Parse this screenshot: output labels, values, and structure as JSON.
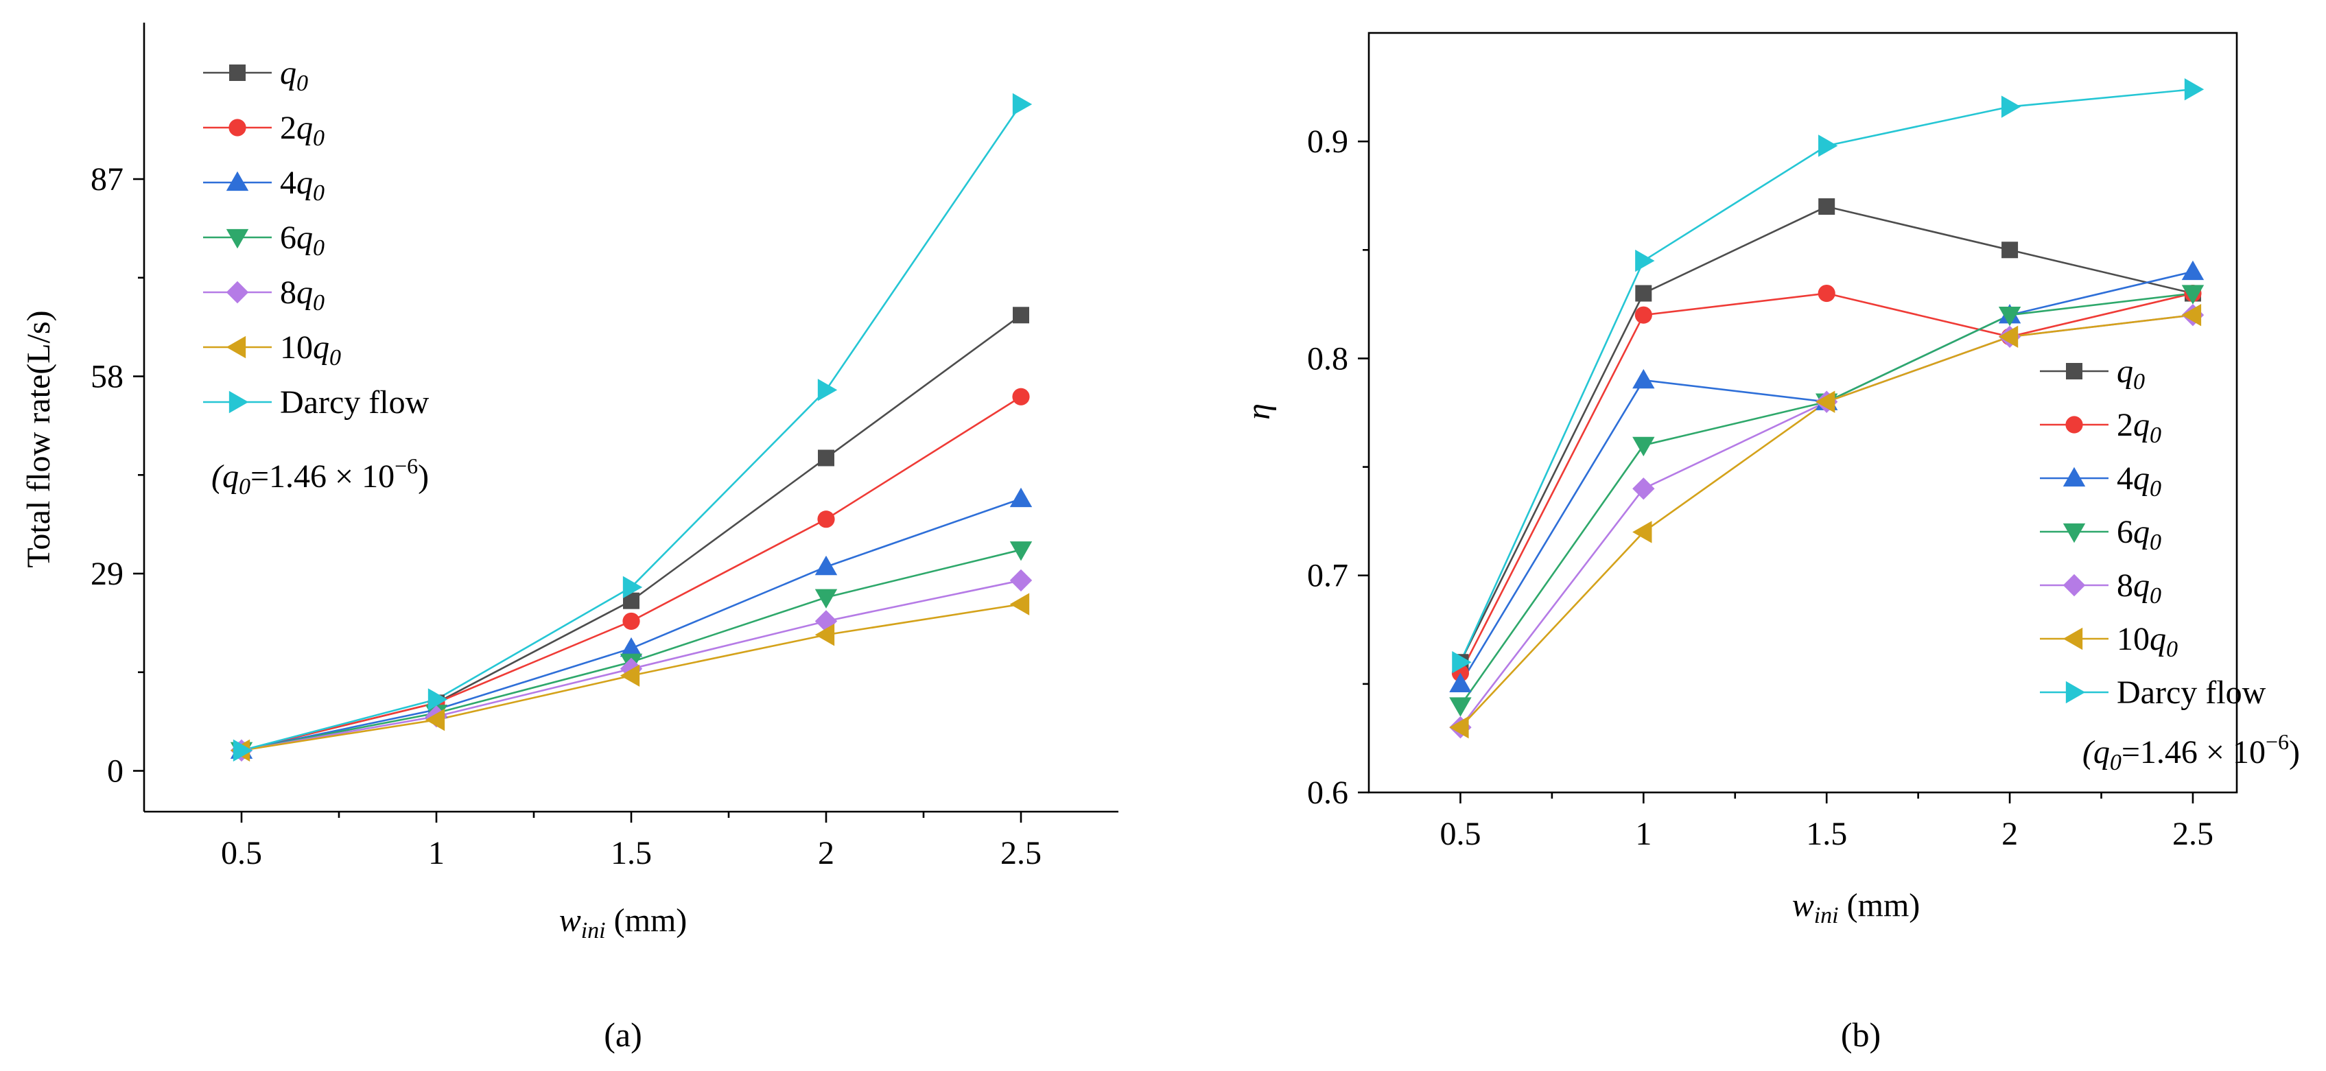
{
  "chart_data": [
    {
      "type": "line",
      "panel_label": "(a)",
      "x": [
        0.5,
        1,
        1.5,
        2,
        2.5
      ],
      "x_tick_labels": [
        "0.5",
        "1",
        "1.5",
        "2",
        "2.5"
      ],
      "xlim": [
        0.25,
        2.75
      ],
      "xlabel": {
        "var": "w",
        "sub": "ini",
        "unit": "(mm)"
      },
      "ylabel": "Total flow rate(L/s)",
      "ylim": [
        -6,
        110
      ],
      "y_ticks": [
        0,
        29,
        58,
        87
      ],
      "y_tick_labels": [
        "0",
        "29",
        "58",
        "87"
      ],
      "legend_position": "top-left",
      "note": {
        "open": "(",
        "var": "q",
        "sub": "0",
        "text": "=1.46 × 10",
        "exp": "−6",
        "close": ")"
      },
      "series": [
        {
          "name": "q0",
          "prefix": "",
          "var": "q",
          "sub": "0",
          "marker": "square",
          "color": "#4d4d4d",
          "values": [
            3,
            10,
            25,
            46,
            67
          ]
        },
        {
          "name": "2q0",
          "prefix": "2",
          "var": "q",
          "sub": "0",
          "marker": "circle",
          "color": "#ef3b36",
          "values": [
            3,
            10,
            22,
            37,
            55
          ]
        },
        {
          "name": "4q0",
          "prefix": "4",
          "var": "q",
          "sub": "0",
          "marker": "triangle-up",
          "color": "#2e6fd8",
          "values": [
            3,
            9,
            18,
            30,
            40
          ]
        },
        {
          "name": "6q0",
          "prefix": "6",
          "var": "q",
          "sub": "0",
          "marker": "triangle-down",
          "color": "#2ea86b",
          "values": [
            3,
            8.5,
            16,
            25.5,
            32.5
          ]
        },
        {
          "name": "8q0",
          "prefix": "8",
          "var": "q",
          "sub": "0",
          "marker": "diamond",
          "color": "#b57be6",
          "values": [
            3,
            8,
            15,
            22,
            28
          ]
        },
        {
          "name": "10q0",
          "prefix": "10",
          "var": "q",
          "sub": "0",
          "marker": "triangle-left",
          "color": "#d4a21a",
          "values": [
            3,
            7.5,
            14,
            20,
            24.5
          ]
        },
        {
          "name": "Darcy flow",
          "prefix": "Darcy flow",
          "var": "",
          "sub": "",
          "marker": "triangle-right",
          "color": "#25c6d4",
          "values": [
            3,
            10.5,
            27,
            56,
            98
          ]
        }
      ]
    },
    {
      "type": "line",
      "panel_label": "(b)",
      "x": [
        0.5,
        1,
        1.5,
        2,
        2.5
      ],
      "x_tick_labels": [
        "0.5",
        "1",
        "1.5",
        "2",
        "2.5"
      ],
      "xlim": [
        0.25,
        2.62
      ],
      "xlabel": {
        "var": "w",
        "sub": "ini",
        "unit": "(mm)"
      },
      "ylabel": "η",
      "ylim": [
        0.6,
        0.95
      ],
      "y_ticks": [
        0.6,
        0.7,
        0.8,
        0.9
      ],
      "y_tick_labels": [
        "0.6",
        "0.7",
        "0.8",
        "0.9"
      ],
      "legend_position": "bottom-right",
      "note": {
        "open": "(",
        "var": "q",
        "sub": "0",
        "text": "=1.46 × 10",
        "exp": "−6",
        "close": ")"
      },
      "series": [
        {
          "name": "q0",
          "prefix": "",
          "var": "q",
          "sub": "0",
          "marker": "square",
          "color": "#4d4d4d",
          "values": [
            0.66,
            0.83,
            0.87,
            0.85,
            0.83
          ]
        },
        {
          "name": "2q0",
          "prefix": "2",
          "var": "q",
          "sub": "0",
          "marker": "circle",
          "color": "#ef3b36",
          "values": [
            0.655,
            0.82,
            0.83,
            0.81,
            0.83
          ]
        },
        {
          "name": "4q0",
          "prefix": "4",
          "var": "q",
          "sub": "0",
          "marker": "triangle-up",
          "color": "#2e6fd8",
          "values": [
            0.65,
            0.79,
            0.78,
            0.82,
            0.84
          ]
        },
        {
          "name": "6q0",
          "prefix": "6",
          "var": "q",
          "sub": "0",
          "marker": "triangle-down",
          "color": "#2ea86b",
          "values": [
            0.64,
            0.76,
            0.78,
            0.82,
            0.83
          ]
        },
        {
          "name": "8q0",
          "prefix": "8",
          "var": "q",
          "sub": "0",
          "marker": "diamond",
          "color": "#b57be6",
          "values": [
            0.63,
            0.74,
            0.78,
            0.81,
            0.82
          ]
        },
        {
          "name": "10q0",
          "prefix": "10",
          "var": "q",
          "sub": "0",
          "marker": "triangle-left",
          "color": "#d4a21a",
          "values": [
            0.63,
            0.72,
            0.78,
            0.81,
            0.82
          ]
        },
        {
          "name": "Darcy flow",
          "prefix": "Darcy flow",
          "var": "",
          "sub": "",
          "marker": "triangle-right",
          "color": "#25c6d4",
          "values": [
            0.66,
            0.845,
            0.898,
            0.916,
            0.924
          ]
        }
      ]
    }
  ]
}
